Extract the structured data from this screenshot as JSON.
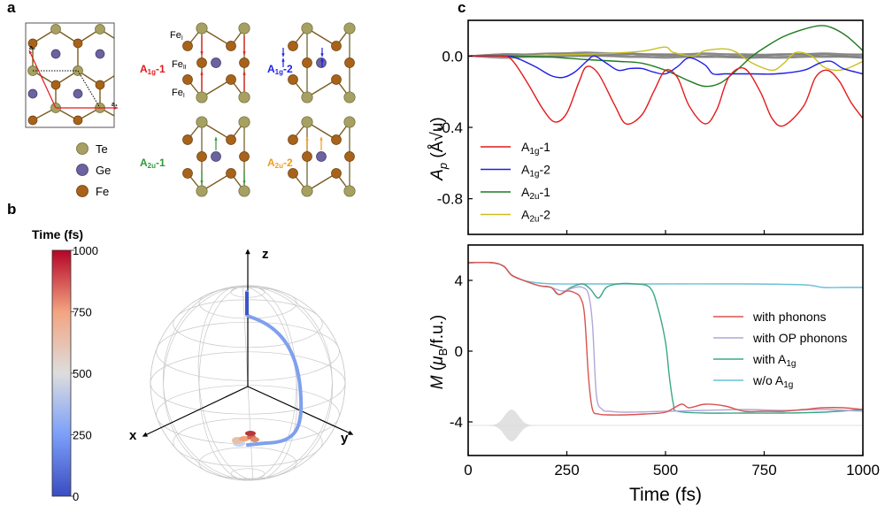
{
  "panels": {
    "a": {
      "letter": "a",
      "lattice_vectors": [
        "a₁",
        "a₂"
      ],
      "legend": [
        {
          "label": "Te",
          "color": "#a6a062"
        },
        {
          "label": "Ge",
          "color": "#6b62a0"
        },
        {
          "label": "Fe",
          "color": "#a8631a"
        }
      ],
      "site_labels": [
        "Feᴵ",
        "Feᴵᴵ",
        "Feᴵ"
      ],
      "site_labels_text": {
        "fe1_top": "Fe",
        "fe1_top_sub": "I",
        "fe2": "Fe",
        "fe2_sub": "II",
        "fe1_bot": "Fe",
        "fe1_bot_sub": "I"
      },
      "modes": [
        {
          "name": "A1g-1",
          "base": "A",
          "sub": "1g",
          "suffix": "-1",
          "color": "#e31a1c",
          "arrows": "Fe-I toward Fe-II (both sides)"
        },
        {
          "name": "A1g-2",
          "base": "A",
          "sub": "1g",
          "suffix": "-2",
          "color": "#1f1fe6",
          "arrows": "Fe-I pair converge"
        },
        {
          "name": "A2u-1",
          "base": "A",
          "sub": "2u",
          "suffix": "-1",
          "color": "#2e9a3a",
          "arrows": "Ge up, Fe-I down"
        },
        {
          "name": "A2u-2",
          "base": "A",
          "sub": "2u",
          "suffix": "-2",
          "color": "#f29b1d",
          "arrows": "Fe-II and Ge up"
        }
      ]
    },
    "b": {
      "letter": "b",
      "colorbar": {
        "title": "Time (fs)",
        "ticks": [
          "1000",
          "750",
          "500",
          "250",
          "0"
        ],
        "range": [
          0,
          1000
        ],
        "colormap": "coolwarm"
      },
      "axes": {
        "x": "x",
        "y": "y",
        "z": "z"
      },
      "trajectory_note": "Spin path from +z pole (blue, early) down meridian to near -z pole (red, late)"
    },
    "c": {
      "letter": "c"
    }
  },
  "chart_data": [
    {
      "type": "line",
      "title": "",
      "xlabel": "",
      "ylabel": "A_p (Å√u)",
      "ylabel_parts": {
        "main": "A",
        "sub": "p",
        "unit": "(Å√u)"
      },
      "xlim": [
        0,
        1000
      ],
      "ylim": [
        -1.0,
        0.2
      ],
      "xticks": [
        0,
        250,
        500,
        750,
        1000
      ],
      "xtick_labels_shown": false,
      "yticks": [
        0.0,
        -0.4,
        -0.8
      ],
      "ytick_labels": [
        "0.0",
        "-0.4",
        "-0.8"
      ],
      "grid": false,
      "legend_position": "bottom-left",
      "series": [
        {
          "name": "A1g-1",
          "legend_base": "A",
          "legend_sub": "1g",
          "legend_suffix": "-1",
          "color": "#e31a1c",
          "x": [
            0,
            80,
            110,
            150,
            190,
            220,
            250,
            280,
            300,
            330,
            370,
            400,
            440,
            470,
            500,
            530,
            560,
            600,
            630,
            660,
            700,
            740,
            770,
            800,
            850,
            880,
            910,
            940,
            970,
            1000
          ],
          "y": [
            0,
            0,
            -0.02,
            -0.15,
            -0.3,
            -0.37,
            -0.32,
            -0.15,
            -0.06,
            -0.1,
            -0.27,
            -0.38,
            -0.33,
            -0.2,
            -0.08,
            -0.12,
            -0.28,
            -0.38,
            -0.3,
            -0.12,
            -0.07,
            -0.2,
            -0.35,
            -0.39,
            -0.28,
            -0.12,
            -0.08,
            -0.14,
            -0.26,
            -0.35
          ]
        },
        {
          "name": "A1g-2",
          "legend_base": "A",
          "legend_sub": "1g",
          "legend_suffix": "-2",
          "color": "#1f1fe6",
          "x": [
            0,
            80,
            120,
            170,
            210,
            240,
            270,
            300,
            320,
            350,
            380,
            410,
            440,
            470,
            500,
            530,
            560,
            600,
            620,
            650,
            680,
            720,
            780,
            850,
            890,
            920,
            950,
            1000
          ],
          "y": [
            0,
            0,
            -0.01,
            -0.06,
            -0.11,
            -0.12,
            -0.09,
            -0.03,
            0,
            -0.04,
            -0.08,
            -0.07,
            -0.07,
            -0.09,
            -0.1,
            -0.06,
            -0.01,
            -0.05,
            -0.1,
            -0.1,
            -0.1,
            -0.1,
            -0.1,
            -0.08,
            -0.04,
            -0.03,
            -0.07,
            -0.1
          ]
        },
        {
          "name": "A2u-1",
          "legend_base": "A",
          "legend_sub": "2u",
          "legend_suffix": "-1",
          "color": "#1f7a1f",
          "x": [
            0,
            100,
            200,
            300,
            380,
            440,
            500,
            560,
            600,
            640,
            680,
            720,
            760,
            800,
            850,
            890,
            920,
            960,
            1000
          ],
          "y": [
            0,
            0,
            -0.005,
            -0.02,
            -0.03,
            -0.04,
            -0.08,
            -0.14,
            -0.17,
            -0.15,
            -0.08,
            0.0,
            0.06,
            0.11,
            0.15,
            0.17,
            0.16,
            0.11,
            0.03
          ]
        },
        {
          "name": "A2u-2",
          "legend_base": "A",
          "legend_sub": "2u",
          "legend_suffix": "-2",
          "color": "#c8c020",
          "x": [
            0,
            100,
            200,
            300,
            400,
            450,
            500,
            520,
            570,
            600,
            650,
            680,
            720,
            770,
            800,
            830,
            870,
            900,
            930,
            960,
            1000
          ],
          "y": [
            0,
            0,
            0.005,
            0.01,
            0.02,
            0.03,
            0.05,
            0.02,
            0.0,
            0.03,
            0.04,
            0.02,
            -0.04,
            -0.08,
            -0.04,
            0.02,
            0.0,
            -0.06,
            -0.08,
            -0.07,
            -0.03
          ]
        },
        {
          "name": "other modes",
          "legend": false,
          "color": "#808080",
          "note": "bundle of small-amplitude modes near 0",
          "x": [
            0,
            100,
            200,
            300,
            400,
            500,
            600,
            700,
            800,
            900,
            1000
          ],
          "y": [
            0,
            0,
            0.005,
            0.01,
            0.005,
            0.0,
            0.005,
            0.0,
            0.0,
            0.005,
            0.0
          ]
        }
      ]
    },
    {
      "type": "line",
      "title": "",
      "xlabel": "Time (fs)",
      "ylabel": "M (μB/f.u.)",
      "ylabel_parts": {
        "main": "M",
        "open": " (",
        "mu": "μ",
        "sub": "B",
        "unit": "/f.u.)"
      },
      "xlim": [
        0,
        1000
      ],
      "ylim": [
        -5.9,
        6.0
      ],
      "xticks": [
        0,
        250,
        500,
        750,
        1000
      ],
      "xtick_labels": [
        "0",
        "250",
        "500",
        "750",
        "1000"
      ],
      "yticks": [
        4,
        0,
        -4
      ],
      "ytick_labels": [
        "4",
        "0",
        "-4"
      ],
      "grid": false,
      "legend_position": "center-right",
      "series": [
        {
          "name": "with phonons",
          "legend_main": "with phonons",
          "color": "#d9534f",
          "x": [
            0,
            60,
            90,
            110,
            140,
            180,
            210,
            230,
            250,
            270,
            285,
            295,
            305,
            315,
            330,
            350,
            400,
            450,
            500,
            540,
            560,
            600,
            650,
            700,
            750,
            800,
            850,
            900,
            950,
            1000
          ],
          "y": [
            5.0,
            5.0,
            4.8,
            4.3,
            4.0,
            3.7,
            3.6,
            3.2,
            3.4,
            3.3,
            3.0,
            2.0,
            -1.5,
            -3.3,
            -3.55,
            -3.6,
            -3.6,
            -3.55,
            -3.45,
            -3.0,
            -3.2,
            -3.0,
            -3.1,
            -3.4,
            -3.4,
            -3.4,
            -3.3,
            -3.2,
            -3.2,
            -3.3
          ]
        },
        {
          "name": "with OP phonons",
          "legend_main": "with OP phonons",
          "color": "#b3a6d9",
          "x": [
            0,
            60,
            90,
            110,
            140,
            180,
            210,
            240,
            270,
            290,
            305,
            315,
            325,
            340,
            360,
            400,
            500,
            600,
            700,
            800,
            900,
            1000
          ],
          "y": [
            5.0,
            5.0,
            4.8,
            4.3,
            4.0,
            3.7,
            3.6,
            3.4,
            3.6,
            3.6,
            3.2,
            1.5,
            -2.5,
            -3.3,
            -3.4,
            -3.45,
            -3.4,
            -3.35,
            -3.3,
            -3.35,
            -3.3,
            -3.4
          ]
        },
        {
          "name": "with A1g",
          "legend_main": "with A",
          "legend_sub": "1g",
          "color": "#3aa886",
          "x": [
            0,
            60,
            90,
            110,
            140,
            180,
            210,
            230,
            260,
            290,
            310,
            330,
            350,
            380,
            420,
            460,
            480,
            500,
            510,
            520,
            530,
            600,
            700,
            800,
            900,
            1000
          ],
          "y": [
            5.0,
            5.0,
            4.8,
            4.3,
            4.0,
            3.7,
            3.6,
            3.2,
            3.6,
            3.8,
            3.5,
            3.0,
            3.6,
            3.8,
            3.8,
            3.6,
            2.5,
            0.5,
            -1.5,
            -3.0,
            -3.4,
            -3.5,
            -3.5,
            -3.5,
            -3.45,
            -3.3
          ]
        },
        {
          "name": "w/o A1g",
          "legend_main": "w/o A",
          "legend_sub": "1g",
          "color": "#6cbfd8",
          "x": [
            0,
            60,
            90,
            110,
            140,
            180,
            220,
            300,
            500,
            700,
            850,
            900,
            950,
            1000
          ],
          "y": [
            5.0,
            5.0,
            4.8,
            4.3,
            4.0,
            3.85,
            3.8,
            3.8,
            3.8,
            3.8,
            3.75,
            3.6,
            3.6,
            3.6
          ]
        },
        {
          "name": "laser pulse",
          "legend": false,
          "color": "#c8c8c8",
          "note": "Gaussian pump pulse envelope centered ~110 fs at baseline M=-4.2",
          "center_fs": 110,
          "width_fs": 40,
          "baseline": -4.2,
          "amplitude": 0.9
        }
      ]
    }
  ]
}
